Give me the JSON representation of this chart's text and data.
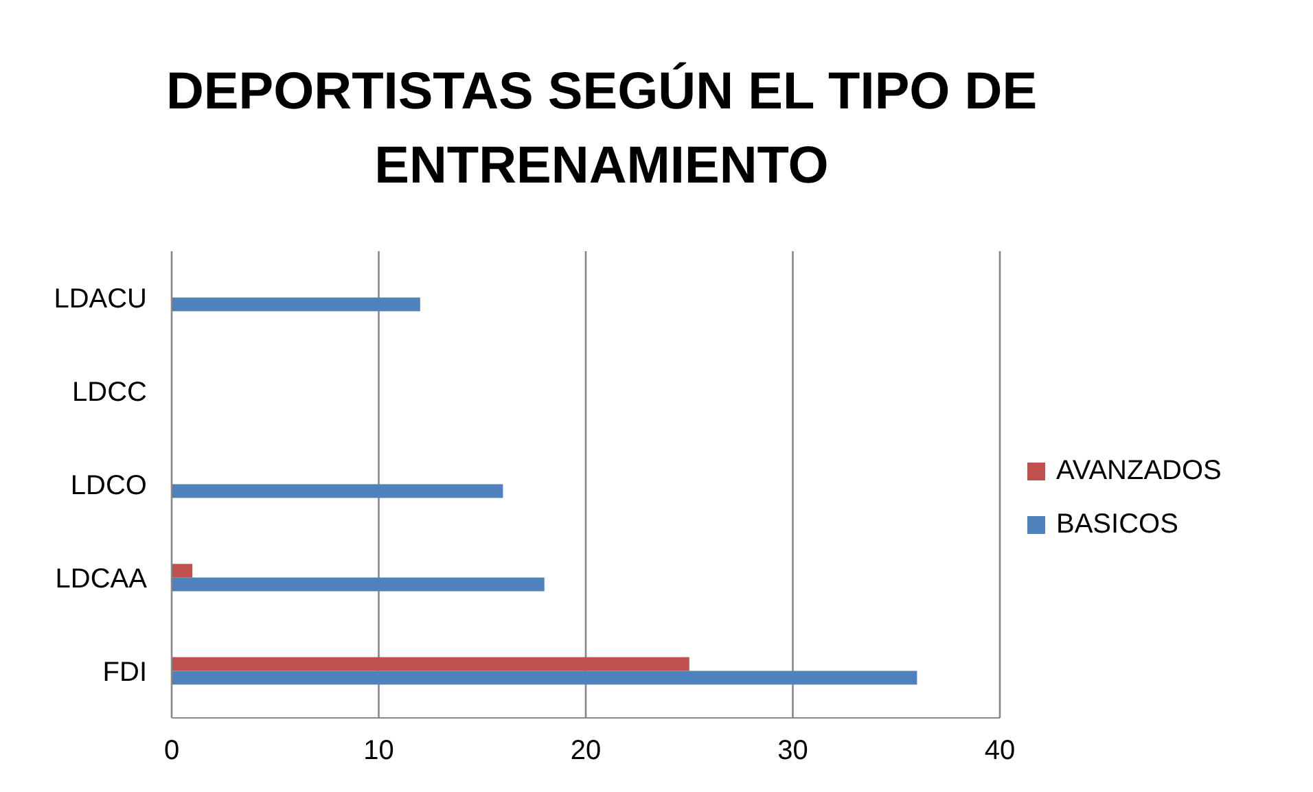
{
  "chart_data": {
    "type": "bar",
    "orientation": "horizontal",
    "title": "DEPORTISTAS SEGÚN EL TIPO DE ENTRENAMIENTO",
    "categories": [
      "LDACU",
      "LDCC",
      "LDCO",
      "LDCAA",
      "FDI"
    ],
    "series": [
      {
        "name": "AVANZADOS",
        "color": "#c0504d",
        "values": [
          0,
          0,
          0,
          1,
          25
        ]
      },
      {
        "name": "BASICOS",
        "color": "#4f81bd",
        "values": [
          12,
          0,
          16,
          18,
          36
        ]
      }
    ],
    "xlim": [
      0,
      40
    ],
    "xticks": [
      0,
      10,
      20,
      30,
      40
    ],
    "grid": "x",
    "legend": "right"
  }
}
